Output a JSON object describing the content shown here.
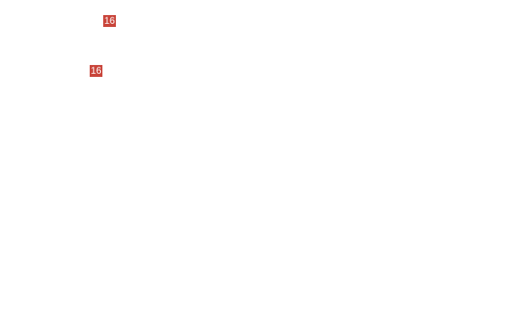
{
  "badges": [
    {
      "label": "16"
    },
    {
      "label": "16"
    }
  ],
  "colors": {
    "badge": "#c9453b",
    "background": "#ffffff"
  }
}
